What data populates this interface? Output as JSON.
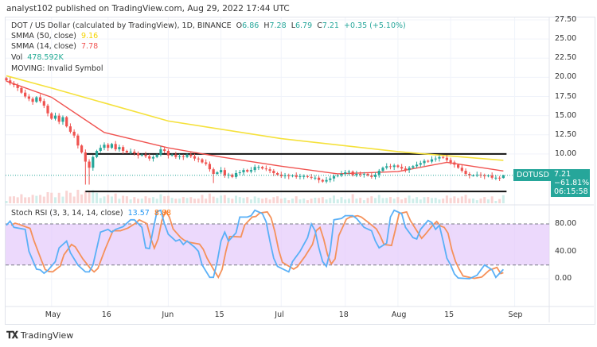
{
  "header": {
    "published": "analyst102 published on TradingView.com, Aug 29, 2022 17:44 UTC"
  },
  "legend": {
    "symbol": "DOT / US Dollar (calculated by TradingView), 1D, BINANCE",
    "o_label": "O",
    "o": "6.86",
    "h_label": "H",
    "h": "7.28",
    "l_label": "L",
    "l": "6.79",
    "c_label": "C",
    "c": "7.21",
    "change": "+0.35 (+5.10%)",
    "smma50_label": "SMMA (50, close)",
    "smma50": "9.16",
    "smma14_label": "SMMA (14, close)",
    "smma14": "7.78",
    "vol_label": "Vol",
    "vol": "478.592K",
    "moving": "MOVING: Invalid Symbol"
  },
  "stoch": {
    "label": "Stoch RSI (3, 3, 14, 14, close)",
    "k": "13.57",
    "d": "8.88"
  },
  "price_axis": [
    "27.50",
    "25.00",
    "22.50",
    "20.00",
    "17.50",
    "15.00",
    "12.50",
    "10.00"
  ],
  "stoch_axis": [
    "80.00",
    "40.00",
    "0.00"
  ],
  "badge": {
    "symbol": "DOTUSD",
    "price": "7.21",
    "change": "−61.81%",
    "timer": "06:15:58"
  },
  "x_axis": [
    {
      "label": "May",
      "day": 12
    },
    {
      "label": "16",
      "day": 27
    },
    {
      "label": "Jun",
      "day": 43
    },
    {
      "label": "15",
      "day": 57
    },
    {
      "label": "Jul",
      "day": 73
    },
    {
      "label": "18",
      "day": 90
    },
    {
      "label": "Aug",
      "day": 104
    },
    {
      "label": "15",
      "day": 118
    },
    {
      "label": "Sep",
      "day": 135
    }
  ],
  "footer": {
    "brand": "TradingView"
  },
  "colors": {
    "up": "#26a69a",
    "down": "#ef5350",
    "smma50": "#f5e13b",
    "smma14": "#f05350",
    "k": "#5ab0f7",
    "d": "#f5915a",
    "band": "#e6ccfb"
  },
  "chart_data": {
    "type": "candlestick",
    "start_date": "2022-04-19",
    "closes": [
      19.6,
      19.2,
      19.0,
      18.6,
      18.0,
      17.5,
      17.2,
      16.8,
      17.4,
      16.9,
      16.3,
      15.3,
      14.6,
      15.0,
      14.2,
      14.8,
      13.6,
      12.9,
      12.4,
      11.1,
      10.2,
      9.0,
      8.2,
      9.6,
      10.4,
      10.8,
      11.2,
      10.8,
      11.3,
      10.6,
      10.9,
      10.4,
      10.2,
      10.3,
      10.1,
      9.8,
      9.9,
      9.7,
      9.4,
      9.6,
      9.9,
      10.6,
      10.4,
      9.8,
      9.9,
      9.6,
      9.7,
      9.6,
      9.9,
      9.7,
      9.4,
      9.3,
      8.9,
      8.7,
      8.0,
      7.4,
      7.6,
      7.9,
      7.2,
      7.3,
      7.0,
      7.5,
      7.6,
      7.9,
      7.7,
      7.9,
      8.3,
      8.3,
      8.1,
      8.0,
      7.8,
      7.5,
      7.3,
      7.1,
      7.2,
      7.1,
      7.2,
      7.0,
      7.1,
      7.1,
      7.0,
      6.9,
      6.9,
      6.6,
      6.4,
      6.6,
      6.8,
      7.1,
      7.2,
      7.4,
      7.6,
      7.7,
      7.2,
      7.4,
      7.3,
      7.4,
      7.2,
      7.0,
      7.3,
      7.8,
      8.2,
      8.4,
      8.3,
      8.5,
      8.3,
      8.1,
      7.9,
      8.2,
      8.4,
      8.6,
      8.8,
      9.1,
      9.0,
      9.3,
      9.4,
      9.6,
      9.5,
      9.2,
      8.9,
      8.6,
      8.2,
      7.8,
      7.4,
      7.2,
      7.2,
      7.3,
      7.2,
      7.1,
      7.2,
      6.9,
      6.9,
      6.86,
      7.21
    ],
    "last_candle": {
      "open": 6.86,
      "high": 7.28,
      "low": 6.79,
      "close": 7.21
    },
    "horizontal_levels": [
      10.0,
      5.1
    ],
    "smma50_points": [
      [
        0,
        20.2
      ],
      [
        12,
        18.6
      ],
      [
        43,
        14.3
      ],
      [
        73,
        12.0
      ],
      [
        104,
        10.3
      ],
      [
        132,
        9.16
      ]
    ],
    "smma14_points": [
      [
        0,
        19.5
      ],
      [
        12,
        17.4
      ],
      [
        26,
        12.8
      ],
      [
        43,
        10.8
      ],
      [
        57,
        9.6
      ],
      [
        73,
        8.4
      ],
      [
        88,
        7.4
      ],
      [
        104,
        7.7
      ],
      [
        117,
        8.9
      ],
      [
        132,
        7.78
      ]
    ],
    "stoch_k_points": [
      [
        0,
        78
      ],
      [
        1,
        84
      ],
      [
        2,
        75
      ],
      [
        5,
        72
      ],
      [
        6,
        40
      ],
      [
        8,
        14
      ],
      [
        9,
        13
      ],
      [
        10,
        8
      ],
      [
        11,
        12
      ],
      [
        13,
        25
      ],
      [
        14,
        45
      ],
      [
        16,
        55
      ],
      [
        17,
        38
      ],
      [
        19,
        20
      ],
      [
        21,
        10
      ],
      [
        22,
        10
      ],
      [
        23,
        20
      ],
      [
        25,
        68
      ],
      [
        27,
        72
      ],
      [
        28,
        68
      ],
      [
        29,
        72
      ],
      [
        31,
        76
      ],
      [
        33,
        86
      ],
      [
        34,
        86
      ],
      [
        36,
        75
      ],
      [
        37,
        45
      ],
      [
        38,
        44
      ],
      [
        39,
        72
      ],
      [
        40,
        98
      ],
      [
        41,
        100
      ],
      [
        42,
        80
      ],
      [
        43,
        65
      ],
      [
        45,
        55
      ],
      [
        46,
        57
      ],
      [
        47,
        50
      ],
      [
        48,
        55
      ],
      [
        50,
        46
      ],
      [
        51,
        40
      ],
      [
        52,
        20
      ],
      [
        54,
        2
      ],
      [
        55,
        2
      ],
      [
        56,
        25
      ],
      [
        57,
        55
      ],
      [
        58,
        68
      ],
      [
        59,
        55
      ],
      [
        61,
        67
      ],
      [
        62,
        90
      ],
      [
        64,
        90
      ],
      [
        65,
        92
      ],
      [
        66,
        100
      ],
      [
        68,
        95
      ],
      [
        69,
        83
      ],
      [
        70,
        55
      ],
      [
        71,
        30
      ],
      [
        72,
        18
      ],
      [
        75,
        10
      ],
      [
        76,
        25
      ],
      [
        78,
        40
      ],
      [
        80,
        60
      ],
      [
        81,
        80
      ],
      [
        82,
        70
      ],
      [
        83,
        45
      ],
      [
        84,
        25
      ],
      [
        85,
        18
      ],
      [
        86,
        40
      ],
      [
        87,
        86
      ],
      [
        89,
        88
      ],
      [
        90,
        92
      ],
      [
        92,
        92
      ],
      [
        93,
        88
      ],
      [
        95,
        75
      ],
      [
        97,
        70
      ],
      [
        98,
        55
      ],
      [
        99,
        45
      ],
      [
        101,
        52
      ],
      [
        102,
        90
      ],
      [
        103,
        100
      ],
      [
        105,
        95
      ],
      [
        106,
        75
      ],
      [
        108,
        60
      ],
      [
        109,
        58
      ],
      [
        110,
        72
      ],
      [
        112,
        85
      ],
      [
        113,
        82
      ],
      [
        114,
        72
      ],
      [
        115,
        78
      ],
      [
        116,
        55
      ],
      [
        117,
        30
      ],
      [
        118,
        20
      ],
      [
        119,
        7
      ],
      [
        120,
        1
      ],
      [
        123,
        0
      ],
      [
        125,
        5
      ],
      [
        127,
        20
      ],
      [
        129,
        13
      ],
      [
        130,
        2
      ],
      [
        132,
        13.57
      ]
    ],
    "stoch_range": [
      0,
      100
    ],
    "stoch_bands": [
      20,
      80
    ],
    "ylim": [
      5,
      27.5
    ]
  }
}
